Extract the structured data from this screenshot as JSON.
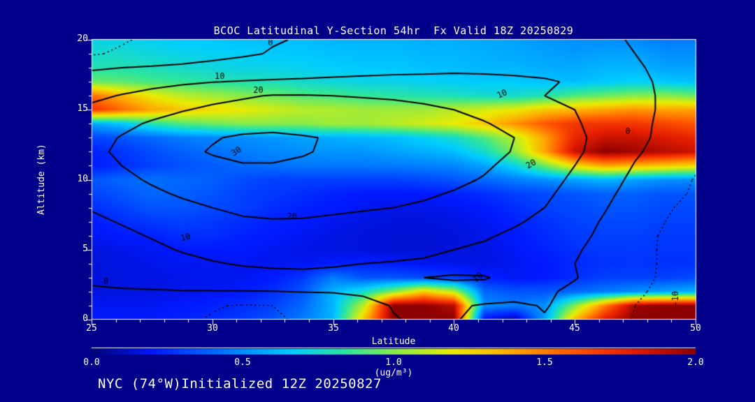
{
  "title": "BCOC Latitudinal Y-Section 54hr  Fx Valid 18Z 20250829",
  "footer": "NYC (74°W)Initialized 12Z 20250827",
  "colors": {
    "background": "#00008B",
    "text": "#FFFFFF",
    "contour_lines": "#000000",
    "frame": "#FFFFFF",
    "colormap_low": "#020273",
    "colormap_high": "#8C0000"
  },
  "chart_data": {
    "type": "heatmap",
    "title": "BCOC Latitudinal Y-Section 54hr  Fx Valid 18Z 20250829",
    "xlabel": "Latitude",
    "ylabel": "Altitude (km)",
    "x_range": [
      25,
      50
    ],
    "y_range": [
      0,
      20
    ],
    "x_ticks": [
      "25",
      "30",
      "35",
      "40",
      "45",
      "50"
    ],
    "y_ticks": [
      "0",
      "5",
      "10",
      "15",
      "20"
    ],
    "grid": false,
    "colorbar": {
      "ticks": [
        "0.0",
        "0.5",
        "1.0",
        "1.5",
        "2.0"
      ],
      "range": [
        0,
        2
      ],
      "units": "(ug/m³)"
    },
    "lats": [
      25,
      26.25,
      27.5,
      28.75,
      30,
      31.25,
      32.5,
      33.75,
      35,
      36.25,
      37.5,
      38.75,
      40,
      41.25,
      42.5,
      43.75,
      45,
      46.25,
      47.5,
      48.75,
      50
    ],
    "alts": [
      0,
      1,
      2,
      3,
      4,
      5,
      6,
      7,
      8,
      9,
      10,
      11,
      12,
      13,
      14,
      15,
      16,
      17,
      18,
      19,
      20
    ],
    "concentration_ug_m3": [
      [
        0.2,
        0.2,
        0.2,
        0.22,
        0.25,
        0.28,
        0.35,
        0.45,
        0.6,
        1.3,
        2.0,
        2.0,
        2.0,
        0.15,
        0.05,
        0.55,
        1.35,
        1.8,
        2.0,
        2.0,
        2.0
      ],
      [
        0.18,
        0.18,
        0.18,
        0.2,
        0.22,
        0.25,
        0.3,
        0.4,
        0.6,
        1.1,
        2.0,
        2.0,
        1.9,
        0.5,
        0.45,
        0.5,
        1.0,
        1.5,
        1.95,
        2.0,
        2.0
      ],
      [
        0.15,
        0.16,
        0.16,
        0.17,
        0.18,
        0.2,
        0.25,
        0.35,
        0.6,
        0.75,
        1.0,
        1.3,
        1.1,
        0.4,
        0.35,
        0.35,
        0.4,
        0.45,
        0.5,
        0.55,
        0.6
      ],
      [
        0.15,
        0.16,
        0.16,
        0.17,
        0.18,
        0.18,
        0.2,
        0.28,
        0.45,
        0.35,
        0.35,
        0.32,
        0.28,
        0.22,
        0.18,
        0.2,
        0.25,
        0.3,
        0.3,
        0.3,
        0.32
      ],
      [
        0.15,
        0.16,
        0.17,
        0.18,
        0.18,
        0.18,
        0.18,
        0.18,
        0.2,
        0.22,
        0.2,
        0.18,
        0.17,
        0.16,
        0.18,
        0.2,
        0.24,
        0.26,
        0.27,
        0.26,
        0.26
      ],
      [
        0.15,
        0.17,
        0.18,
        0.2,
        0.2,
        0.2,
        0.18,
        0.17,
        0.16,
        0.15,
        0.14,
        0.14,
        0.15,
        0.16,
        0.19,
        0.22,
        0.26,
        0.28,
        0.28,
        0.27,
        0.27
      ],
      [
        0.18,
        0.2,
        0.22,
        0.25,
        0.25,
        0.22,
        0.2,
        0.18,
        0.16,
        0.15,
        0.14,
        0.14,
        0.15,
        0.17,
        0.2,
        0.24,
        0.28,
        0.3,
        0.3,
        0.28,
        0.28
      ],
      [
        0.2,
        0.25,
        0.28,
        0.3,
        0.28,
        0.25,
        0.22,
        0.2,
        0.18,
        0.16,
        0.15,
        0.15,
        0.16,
        0.18,
        0.22,
        0.26,
        0.3,
        0.32,
        0.32,
        0.3,
        0.3
      ],
      [
        0.25,
        0.3,
        0.35,
        0.35,
        0.32,
        0.3,
        0.25,
        0.22,
        0.2,
        0.18,
        0.17,
        0.17,
        0.18,
        0.2,
        0.25,
        0.3,
        0.32,
        0.35,
        0.35,
        0.32,
        0.32
      ],
      [
        0.3,
        0.35,
        0.4,
        0.38,
        0.35,
        0.3,
        0.28,
        0.25,
        0.22,
        0.2,
        0.2,
        0.2,
        0.22,
        0.25,
        0.3,
        0.32,
        0.35,
        0.38,
        0.38,
        0.35,
        0.35
      ],
      [
        0.35,
        0.4,
        0.42,
        0.4,
        0.38,
        0.33,
        0.3,
        0.3,
        0.3,
        0.3,
        0.3,
        0.32,
        0.35,
        0.4,
        0.45,
        0.5,
        0.55,
        0.6,
        0.55,
        0.5,
        0.5
      ],
      [
        0.2,
        0.25,
        0.3,
        0.34,
        0.37,
        0.4,
        0.42,
        0.44,
        0.44,
        0.44,
        0.45,
        0.46,
        0.48,
        0.55,
        0.7,
        0.95,
        1.25,
        1.4,
        1.35,
        1.3,
        1.25
      ],
      [
        0.22,
        0.27,
        0.33,
        0.38,
        0.42,
        0.45,
        0.48,
        0.5,
        0.52,
        0.52,
        0.55,
        0.58,
        0.62,
        0.75,
        1.0,
        1.4,
        1.85,
        2.0,
        1.95,
        1.9,
        1.85
      ],
      [
        0.3,
        0.35,
        0.4,
        0.45,
        0.48,
        0.5,
        0.52,
        0.55,
        0.58,
        0.6,
        0.62,
        0.68,
        0.75,
        0.9,
        1.1,
        1.4,
        1.75,
        1.85,
        1.85,
        1.8,
        1.75
      ],
      [
        0.55,
        0.65,
        0.8,
        0.9,
        0.95,
        1.0,
        1.0,
        1.0,
        1.05,
        1.05,
        1.1,
        1.15,
        1.2,
        1.3,
        1.45,
        1.6,
        1.7,
        1.7,
        1.7,
        1.65,
        1.6
      ],
      [
        1.7,
        1.55,
        1.4,
        1.3,
        1.25,
        1.2,
        1.15,
        1.1,
        1.08,
        1.05,
        1.05,
        1.05,
        1.1,
        1.15,
        1.2,
        1.3,
        1.35,
        1.4,
        1.45,
        1.4,
        1.4
      ],
      [
        1.55,
        1.35,
        1.2,
        1.1,
        1.05,
        1.0,
        0.95,
        0.9,
        0.88,
        0.85,
        0.82,
        0.8,
        0.78,
        0.75,
        0.75,
        0.8,
        0.9,
        0.95,
        1.0,
        1.0,
        0.95
      ],
      [
        0.95,
        0.92,
        0.88,
        0.85,
        0.82,
        0.8,
        0.78,
        0.75,
        0.72,
        0.7,
        0.7,
        0.68,
        0.67,
        0.65,
        0.65,
        0.63,
        0.62,
        0.65,
        0.68,
        0.65,
        0.63
      ],
      [
        0.8,
        0.8,
        0.78,
        0.75,
        0.72,
        0.7,
        0.7,
        0.68,
        0.67,
        0.65,
        0.65,
        0.63,
        0.62,
        0.6,
        0.6,
        0.58,
        0.57,
        0.6,
        0.6,
        0.55,
        0.55
      ],
      [
        0.75,
        0.75,
        0.72,
        0.7,
        0.68,
        0.67,
        0.65,
        0.65,
        0.63,
        0.62,
        0.62,
        0.6,
        0.6,
        0.58,
        0.57,
        0.55,
        0.53,
        0.55,
        0.55,
        0.5,
        0.5
      ],
      [
        0.7,
        0.7,
        0.68,
        0.65,
        0.65,
        0.63,
        0.62,
        0.62,
        0.6,
        0.6,
        0.6,
        0.58,
        0.58,
        0.57,
        0.55,
        0.52,
        0.5,
        0.5,
        0.48,
        0.45,
        0.45
      ]
    ],
    "overlay_contours": {
      "levels_solid": [
        0,
        10,
        20,
        30
      ],
      "levels_dashed": [
        -20,
        -10
      ],
      "values": [
        [
          -5,
          -6,
          -7.5,
          -9,
          -10.5,
          -11.5,
          -11,
          -9,
          -7,
          -4,
          -0.5,
          1.5,
          0.5,
          -2,
          -2.5,
          -0.5,
          -3.5,
          -7,
          -10.5,
          -12.5,
          -14
        ],
        [
          -4,
          -5,
          -6.5,
          -8,
          -9.5,
          -10.5,
          -10,
          -8,
          -6,
          -3,
          0.5,
          2.5,
          1.5,
          -1,
          -1.5,
          0.5,
          -2.5,
          -6,
          -10,
          -12,
          -13.5
        ],
        [
          -1.5,
          -1,
          -0.8,
          -0.5,
          -0.5,
          -0.5,
          -0.3,
          0.2,
          0.5,
          1.5,
          3.5,
          6,
          8,
          7,
          4,
          1.5,
          -2,
          -5.5,
          -9,
          -11.5,
          -13
        ],
        [
          2,
          3,
          4.5,
          6,
          7,
          7.5,
          8,
          8.5,
          8.5,
          9,
          9.5,
          10,
          10.5,
          10.5,
          8,
          5,
          0.5,
          -4,
          -8,
          -11,
          -13
        ],
        [
          3.5,
          5,
          6.5,
          8,
          9.5,
          10.5,
          11,
          11,
          10.5,
          10,
          9.5,
          9,
          8,
          6.5,
          4.5,
          2.5,
          0,
          -3.5,
          -7.5,
          -11,
          -13.5
        ],
        [
          5,
          6.5,
          8.5,
          10.5,
          12,
          13.5,
          14,
          14,
          13.5,
          13,
          12.5,
          11.5,
          10,
          8.5,
          6.5,
          4,
          1,
          -3,
          -7.5,
          -11,
          -14
        ],
        [
          6.5,
          8.5,
          10.5,
          12.5,
          14.5,
          16,
          17,
          17,
          16.5,
          16,
          15.5,
          14.5,
          13,
          11,
          8.5,
          6,
          2.5,
          -2,
          -7,
          -11,
          -14
        ],
        [
          8.5,
          10.5,
          13,
          15.5,
          17.5,
          19,
          19.5,
          19.5,
          19,
          18.5,
          18,
          17,
          15.5,
          13.5,
          11,
          8,
          4,
          -1,
          -6,
          -10,
          -13.5
        ],
        [
          10.5,
          13,
          15.5,
          18,
          20,
          21.5,
          22,
          21.5,
          21,
          20.5,
          20,
          19,
          17.5,
          15.5,
          13,
          10,
          5.5,
          0.5,
          -5,
          -9,
          -12.5
        ],
        [
          13,
          15.5,
          18.5,
          21,
          23,
          24,
          24.5,
          24,
          23.5,
          23,
          22,
          21,
          19.5,
          17.5,
          15,
          11.5,
          7,
          2,
          -3.5,
          -7.5,
          -11
        ],
        [
          15,
          18,
          21,
          24,
          26,
          27,
          27,
          26.5,
          26,
          25.5,
          24.5,
          23,
          21.5,
          19.5,
          16.5,
          13,
          8.5,
          3.5,
          -2,
          -6,
          -10.5
        ],
        [
          17,
          20,
          23.5,
          26.5,
          28.5,
          29.5,
          29.5,
          29,
          28,
          27.5,
          26.5,
          25,
          23,
          21,
          18,
          14.5,
          10,
          5,
          -0.5,
          -4.5,
          -9
        ],
        [
          18,
          21.5,
          25.5,
          28.5,
          30.5,
          32,
          32,
          30.5,
          29,
          28.5,
          27.5,
          27,
          25.5,
          23,
          19.5,
          16,
          11.5,
          6.5,
          1,
          -3,
          -7
        ],
        [
          17,
          20.5,
          24,
          27,
          29.5,
          31,
          31.5,
          30.5,
          29.5,
          28.5,
          28,
          27.5,
          25.5,
          23,
          20,
          16.5,
          12,
          7,
          2,
          -2,
          -5
        ],
        [
          15,
          18,
          21,
          23.5,
          25.5,
          27,
          27.5,
          27.5,
          27,
          26.5,
          25.5,
          24.5,
          22.5,
          20.5,
          18,
          15,
          11,
          6.5,
          2,
          -1.5,
          -4.5
        ],
        [
          12,
          14.5,
          17,
          19.5,
          21.5,
          23,
          24,
          24,
          23.5,
          23,
          22.5,
          21.5,
          20,
          18,
          16,
          13.5,
          10,
          6,
          2,
          -1,
          -4
        ],
        [
          8,
          10.5,
          13,
          15.5,
          17.5,
          19,
          20.5,
          20.5,
          20,
          19.5,
          19,
          18,
          16.5,
          14.5,
          12,
          10,
          7.5,
          4.5,
          2,
          -1,
          -4
        ],
        [
          4,
          5.5,
          7,
          8.5,
          9.8,
          10.5,
          11,
          11.5,
          12,
          12.5,
          13,
          13,
          13,
          12.5,
          12,
          11,
          9,
          6,
          2,
          -1.5,
          -4.5
        ],
        [
          -1,
          0,
          0.8,
          1.5,
          2.5,
          3.5,
          4.5,
          5,
          6,
          6.5,
          7,
          7.5,
          8,
          8,
          7.5,
          7,
          6,
          4,
          1,
          -2,
          -5
        ],
        [
          -11,
          -8.5,
          -6,
          -4,
          -2.5,
          -1,
          0.5,
          1.5,
          2.5,
          3,
          4,
          4.5,
          5,
          5,
          5,
          4.5,
          3.5,
          2,
          0,
          -2.5,
          -5
        ],
        [
          -13,
          -11,
          -8,
          -5,
          -3,
          -1.5,
          -0.5,
          0.5,
          1,
          1.5,
          2,
          2.5,
          3,
          3,
          3,
          2.5,
          2,
          1,
          -0.5,
          -2,
          -4
        ]
      ],
      "labels": [
        {
          "text": "0",
          "lat": 32.4,
          "alt": 19.75,
          "rot": 0
        },
        {
          "text": "10",
          "lat": 30.3,
          "alt": 17.35,
          "rot": 0
        },
        {
          "text": "20",
          "lat": 31.9,
          "alt": 16.35,
          "rot": 0
        },
        {
          "text": "10",
          "lat": 42.0,
          "alt": 16.1,
          "rot": -25
        },
        {
          "text": "30",
          "lat": 31.0,
          "alt": 12.0,
          "rot": -35
        },
        {
          "text": "20",
          "lat": 43.2,
          "alt": 11.1,
          "rot": -30
        },
        {
          "text": "20",
          "lat": 33.3,
          "alt": 7.35,
          "rot": 0
        },
        {
          "text": "10",
          "lat": 28.9,
          "alt": 5.85,
          "rot": -15
        },
        {
          "text": "0",
          "lat": 25.6,
          "alt": 2.7,
          "rot": 0
        },
        {
          "text": "10",
          "lat": 41.0,
          "alt": 3.0,
          "rot": -40
        },
        {
          "text": "-10",
          "lat": 49.2,
          "alt": 1.5,
          "rot": -90
        },
        {
          "text": "0",
          "lat": 47.2,
          "alt": 13.4,
          "rot": 0
        }
      ]
    }
  }
}
